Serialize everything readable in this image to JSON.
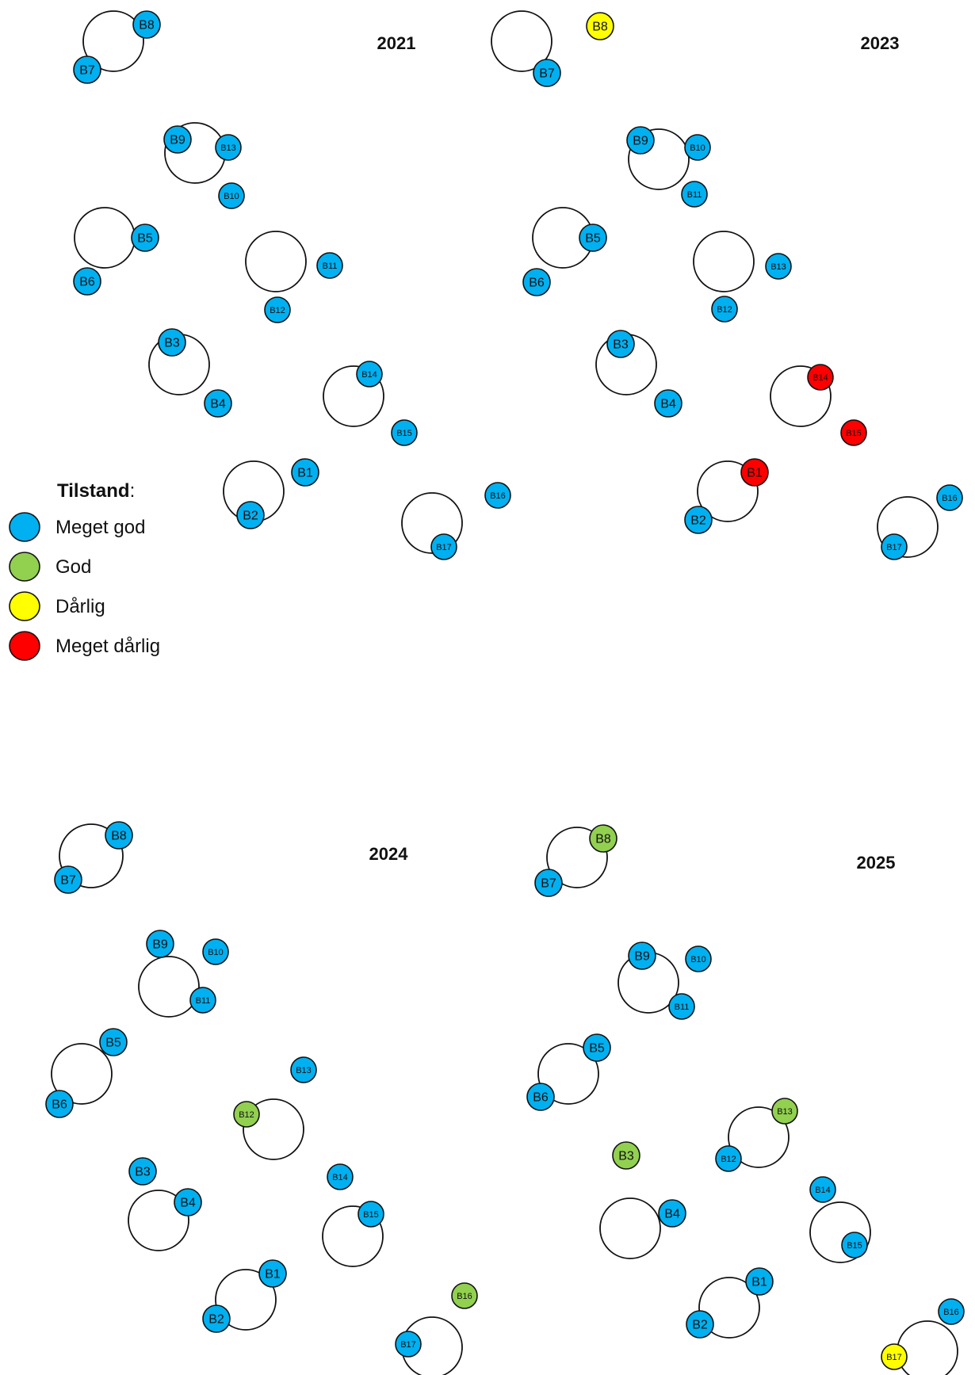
{
  "legend": {
    "title": "Tilstand",
    "title_suffix": ":",
    "items": [
      {
        "key": "meget_god",
        "label": "Meget god",
        "color": "#00B0F0"
      },
      {
        "key": "god",
        "label": "God",
        "color": "#92D050"
      },
      {
        "key": "darlig",
        "label": "Dårlig",
        "color": "#FFFF00"
      },
      {
        "key": "meget_darlig",
        "label": "Meget dårlig",
        "color": "#FF0000"
      }
    ]
  },
  "panels": [
    {
      "year": "2021",
      "pairs": [
        {
          "a": {
            "label": "B8",
            "status": "meget_god"
          },
          "b": {
            "label": "B7",
            "status": "meget_god"
          }
        },
        {
          "a": {
            "label": "B9",
            "status": "meget_god"
          },
          "b": {
            "label": "B13",
            "status": "meget_god"
          },
          "c": {
            "label": "B10",
            "status": "meget_god"
          }
        },
        {
          "a": {
            "label": "B5",
            "status": "meget_god"
          },
          "b": {
            "label": "B6",
            "status": "meget_god"
          }
        },
        {
          "a": {
            "label": "B11",
            "status": "meget_god"
          },
          "b": {
            "label": "B12",
            "status": "meget_god"
          }
        },
        {
          "a": {
            "label": "B3",
            "status": "meget_god"
          },
          "b": {
            "label": "B4",
            "status": "meget_god"
          }
        },
        {
          "a": {
            "label": "B14",
            "status": "meget_god"
          },
          "b": {
            "label": "B15",
            "status": "meget_god"
          }
        },
        {
          "a": {
            "label": "B1",
            "status": "meget_god"
          },
          "b": {
            "label": "B2",
            "status": "meget_god"
          }
        },
        {
          "a": {
            "label": "B16",
            "status": "meget_god"
          },
          "b": {
            "label": "B17",
            "status": "meget_god"
          }
        }
      ]
    },
    {
      "year": "2023",
      "pairs": [
        {
          "a": {
            "label": "B8",
            "status": "darlig"
          },
          "b": {
            "label": "B7",
            "status": "meget_god"
          }
        },
        {
          "a": {
            "label": "B9",
            "status": "meget_god"
          },
          "b": {
            "label": "B10",
            "status": "meget_god"
          },
          "c": {
            "label": "B11",
            "status": "meget_god"
          }
        },
        {
          "a": {
            "label": "B5",
            "status": "meget_god"
          },
          "b": {
            "label": "B6",
            "status": "meget_god"
          }
        },
        {
          "a": {
            "label": "B13",
            "status": "meget_god"
          },
          "b": {
            "label": "B12",
            "status": "meget_god"
          }
        },
        {
          "a": {
            "label": "B3",
            "status": "meget_god"
          },
          "b": {
            "label": "B4",
            "status": "meget_god"
          }
        },
        {
          "a": {
            "label": "B14",
            "status": "meget_darlig"
          },
          "b": {
            "label": "B15",
            "status": "meget_darlig"
          }
        },
        {
          "a": {
            "label": "B1",
            "status": "meget_darlig"
          },
          "b": {
            "label": "B2",
            "status": "meget_god"
          }
        },
        {
          "a": {
            "label": "B16",
            "status": "meget_god"
          },
          "b": {
            "label": "B17",
            "status": "meget_god"
          }
        }
      ]
    },
    {
      "year": "2024",
      "pairs": [
        {
          "a": {
            "label": "B8",
            "status": "meget_god"
          },
          "b": {
            "label": "B7",
            "status": "meget_god"
          }
        },
        {
          "a": {
            "label": "B9",
            "status": "meget_god"
          },
          "b": {
            "label": "B10",
            "status": "meget_god"
          },
          "c": {
            "label": "B11",
            "status": "meget_god"
          }
        },
        {
          "a": {
            "label": "B5",
            "status": "meget_god"
          },
          "b": {
            "label": "B6",
            "status": "meget_god"
          }
        },
        {
          "a": {
            "label": "B13",
            "status": "meget_god"
          },
          "b": {
            "label": "B12",
            "status": "god"
          }
        },
        {
          "a": {
            "label": "B3",
            "status": "meget_god"
          },
          "b": {
            "label": "B4",
            "status": "meget_god"
          }
        },
        {
          "a": {
            "label": "B14",
            "status": "meget_god"
          },
          "b": {
            "label": "B15",
            "status": "meget_god"
          }
        },
        {
          "a": {
            "label": "B1",
            "status": "meget_god"
          },
          "b": {
            "label": "B2",
            "status": "meget_god"
          }
        },
        {
          "a": {
            "label": "B16",
            "status": "god"
          },
          "b": {
            "label": "B17",
            "status": "meget_god"
          }
        }
      ]
    },
    {
      "year": "2025",
      "pairs": [
        {
          "a": {
            "label": "B8",
            "status": "god"
          },
          "b": {
            "label": "B7",
            "status": "meget_god"
          }
        },
        {
          "a": {
            "label": "B9",
            "status": "meget_god"
          },
          "b": {
            "label": "B10",
            "status": "meget_god"
          },
          "c": {
            "label": "B11",
            "status": "meget_god"
          }
        },
        {
          "a": {
            "label": "B5",
            "status": "meget_god"
          },
          "b": {
            "label": "B6",
            "status": "meget_god"
          }
        },
        {
          "a": {
            "label": "B13",
            "status": "god"
          },
          "b": {
            "label": "B12",
            "status": "meget_god"
          }
        },
        {
          "a": {
            "label": "B3",
            "status": "god"
          },
          "b": {
            "label": "B4",
            "status": "meget_god"
          }
        },
        {
          "a": {
            "label": "B14",
            "status": "meget_god"
          },
          "b": {
            "label": "B15",
            "status": "meget_god"
          }
        },
        {
          "a": {
            "label": "B1",
            "status": "meget_god"
          },
          "b": {
            "label": "B2",
            "status": "meget_god"
          }
        },
        {
          "a": {
            "label": "B16",
            "status": "meget_god"
          },
          "b": {
            "label": "B17",
            "status": "darlig"
          }
        }
      ]
    }
  ]
}
